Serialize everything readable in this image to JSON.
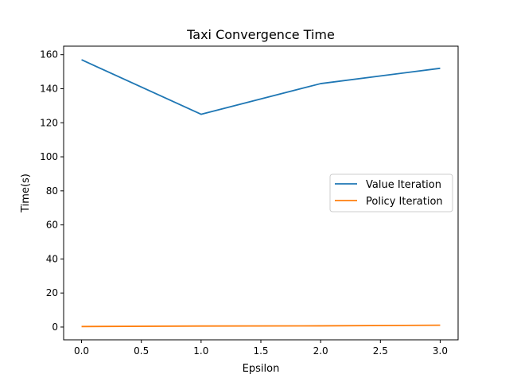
{
  "chart_data": {
    "type": "line",
    "title": "Taxi Convergence Time",
    "xlabel": "Epsilon",
    "ylabel": "Time(s)",
    "x": [
      0.0,
      1.0,
      2.0,
      3.0
    ],
    "xlim": [
      -0.15,
      3.15
    ],
    "ylim": [
      -7.5,
      165
    ],
    "x_ticks": [
      0.0,
      0.5,
      1.0,
      1.5,
      2.0,
      2.5,
      3.0
    ],
    "x_tick_labels": [
      "0.0",
      "0.5",
      "1.0",
      "1.5",
      "2.0",
      "2.5",
      "3.0"
    ],
    "y_ticks": [
      0,
      20,
      40,
      60,
      80,
      100,
      120,
      140,
      160
    ],
    "y_tick_labels": [
      "0",
      "20",
      "40",
      "60",
      "80",
      "100",
      "120",
      "140",
      "160"
    ],
    "grid": false,
    "legend_position": "center-right",
    "series": [
      {
        "name": "Value Iteration",
        "color": "#1f77b4",
        "values": [
          157,
          125,
          143,
          152
        ]
      },
      {
        "name": "Policy Iteration",
        "color": "#ff7f0e",
        "values": [
          0.3,
          0.6,
          0.7,
          1.1
        ]
      }
    ]
  }
}
